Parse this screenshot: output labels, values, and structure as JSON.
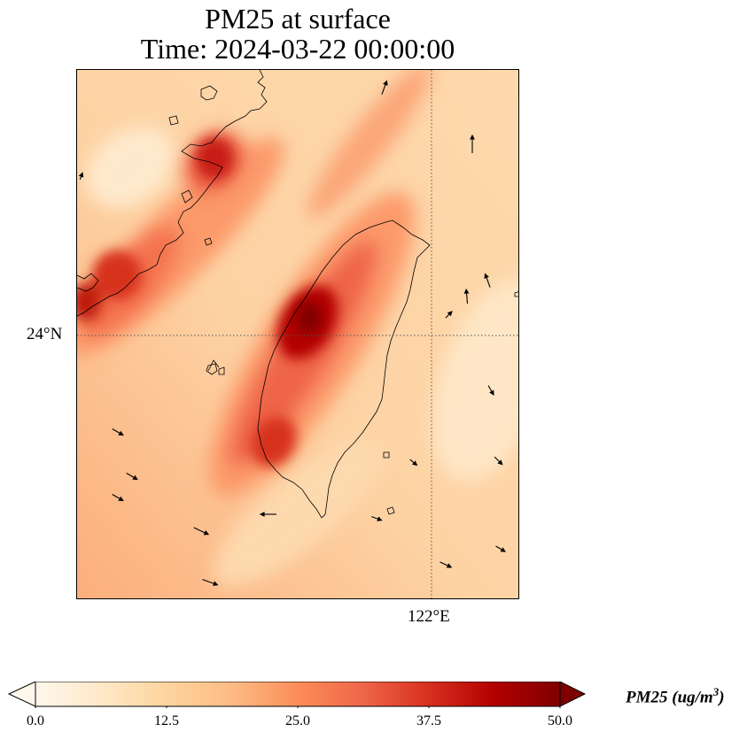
{
  "title": {
    "line1": "PM25 at surface",
    "line2": "Time: 2024-03-22 00:00:00"
  },
  "map": {
    "lat_label": "24°N",
    "lon_label": "122°E",
    "gridline_color": "#555555",
    "land_outline_color": "#000000"
  },
  "colorbar": {
    "label_base": "PM25 (ug/m",
    "label_exp": "3",
    "label_end": ")",
    "min": 0.0,
    "max": 50.0,
    "ticks": [
      "0.0",
      "12.5",
      "25.0",
      "37.5",
      "50.0"
    ],
    "colormap": "OrRd",
    "colors": [
      "#fff7ec",
      "#fee8c8",
      "#fdd49e",
      "#fdbb84",
      "#fc8d59",
      "#ef6548",
      "#d7301f",
      "#b30000",
      "#7f0000"
    ]
  }
}
